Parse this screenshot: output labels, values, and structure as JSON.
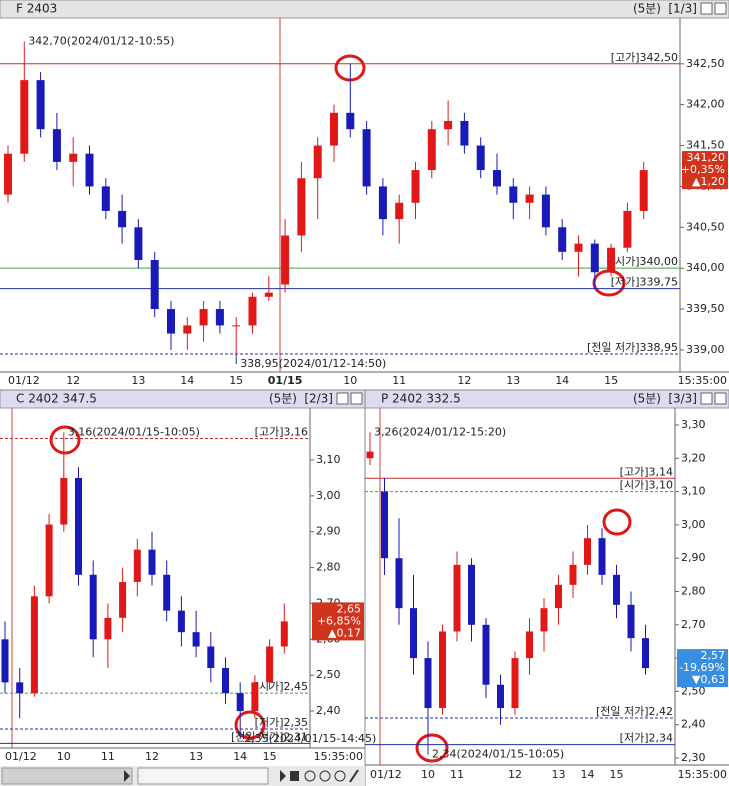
{
  "chart_data": [
    {
      "type": "candlestick",
      "title": "F 2403",
      "timeframe": "(5분)",
      "page": "[1/3]",
      "end_time": "15:35:00",
      "ylim": [
        338.73,
        343.06
      ],
      "yticks": [
        {
          "value": 339,
          "label": "339,00"
        },
        {
          "value": 339.5,
          "label": "339,50"
        },
        {
          "value": 340,
          "label": "340,00"
        },
        {
          "value": 340.5,
          "label": "340,50"
        },
        {
          "value": 341,
          "label": "341,00"
        },
        {
          "value": 341.5,
          "label": "341,50"
        },
        {
          "value": 342,
          "label": "342,00"
        },
        {
          "value": 342.5,
          "label": "342,50"
        }
      ],
      "open": [
        340.9,
        341.4,
        342.3,
        341.7,
        341.3,
        341.4,
        341.0,
        340.7,
        340.5,
        340.1,
        339.5,
        339.2,
        339.3,
        339.5,
        339.3,
        339.3,
        339.65,
        339.8,
        340.4,
        341.1,
        341.5,
        341.9,
        341.7,
        341.0,
        340.6,
        340.8,
        341.2,
        341.7,
        341.8,
        341.5,
        341.2,
        341.0,
        340.8,
        340.9,
        340.5,
        340.2,
        340.3,
        339.95,
        340.25,
        340.7
      ],
      "high": [
        341.5,
        342.7,
        342.4,
        341.9,
        341.6,
        341.5,
        341.1,
        340.9,
        340.6,
        340.2,
        339.6,
        339.4,
        339.6,
        339.6,
        339.4,
        339.7,
        339.9,
        340.6,
        341.3,
        341.6,
        342.0,
        342.5,
        341.8,
        341.1,
        340.9,
        341.3,
        341.8,
        342.05,
        341.9,
        341.6,
        341.4,
        341.1,
        341.0,
        341.0,
        340.6,
        340.4,
        340.35,
        340.3,
        340.8,
        341.3
      ],
      "low": [
        340.8,
        341.3,
        341.6,
        341.2,
        341.0,
        340.9,
        340.6,
        340.3,
        340.0,
        339.4,
        339.0,
        339.0,
        339.1,
        339.2,
        338.95,
        339.2,
        339.6,
        339.7,
        340.2,
        340.6,
        341.3,
        341.6,
        340.9,
        340.4,
        340.3,
        340.6,
        341.1,
        341.5,
        341.4,
        341.1,
        340.9,
        340.6,
        340.6,
        340.4,
        340.1,
        339.9,
        339.75,
        339.9,
        340.2,
        340.6
      ],
      "close": [
        341.4,
        342.3,
        341.7,
        341.3,
        341.4,
        341.0,
        340.7,
        340.5,
        340.1,
        339.5,
        339.2,
        339.3,
        339.5,
        339.3,
        339.3,
        339.65,
        339.7,
        340.4,
        341.1,
        341.5,
        341.9,
        341.7,
        341.0,
        340.6,
        340.8,
        341.2,
        341.7,
        341.8,
        341.5,
        341.2,
        341.0,
        340.8,
        340.9,
        340.5,
        340.2,
        340.3,
        339.95,
        340.25,
        340.7,
        341.2
      ],
      "time_labels": [
        {
          "label": "01/12",
          "index": 0
        },
        {
          "label": "12",
          "index": 4
        },
        {
          "label": "13",
          "index": 8
        },
        {
          "label": "14",
          "index": 11
        },
        {
          "label": "15",
          "index": 14
        },
        {
          "label": "01/15",
          "index": 17
        },
        {
          "label": "10",
          "index": 21
        },
        {
          "label": "11",
          "index": 24
        },
        {
          "label": "12",
          "index": 28
        },
        {
          "label": "13",
          "index": 31
        },
        {
          "label": "14",
          "index": 34
        },
        {
          "label": "15",
          "index": 37
        }
      ],
      "levels": [
        {
          "label": "[고가]342,50",
          "value": 342.5,
          "color": "#c03030",
          "dashed": false
        },
        {
          "label": "[시가]340,00",
          "value": 340,
          "color": "#40a040",
          "dashed": false
        },
        {
          "label": "[저가]339,75",
          "value": 339.75,
          "color": "#2030a0",
          "dashed": false
        },
        {
          "label": "[전일 저가]338,95",
          "value": 338.95,
          "color": "#2030a0",
          "dashed": true
        }
      ],
      "annotations": [
        {
          "label": "342,70(2024/01/12-10:55)",
          "value": 342.7,
          "index": 1,
          "color": "#c03030"
        },
        {
          "label": "338,95(2024/01/12-14:50)",
          "value": 338.95,
          "index": 14,
          "color": "#2030a0"
        }
      ],
      "current": {
        "price": 341.2,
        "labels": [
          "341,20",
          "+0,35%",
          "▲1,20"
        ],
        "color": "#d0341c"
      }
    },
    {
      "type": "candlestick",
      "title": "C 2402 347.5",
      "timeframe": "(5분)",
      "page": "[2/3]",
      "end_time": "15:35:00",
      "ylim": [
        2.297,
        3.245
      ],
      "yticks": [
        {
          "value": 2.4,
          "label": "2,40"
        },
        {
          "value": 2.5,
          "label": "2,50"
        },
        {
          "value": 2.6,
          "label": "2,60"
        },
        {
          "value": 2.7,
          "label": "2,70"
        },
        {
          "value": 2.8,
          "label": "2,80"
        },
        {
          "value": 2.9,
          "label": "2,90"
        },
        {
          "value": 3,
          "label": "3,00"
        },
        {
          "value": 3.1,
          "label": "3,10"
        }
      ],
      "open": [
        2.6,
        2.48,
        2.45,
        2.72,
        2.92,
        3.05,
        2.78,
        2.6,
        2.66,
        2.76,
        2.85,
        2.78,
        2.68,
        2.62,
        2.58,
        2.52,
        2.45,
        2.4,
        2.48,
        2.58
      ],
      "high": [
        2.65,
        2.52,
        2.75,
        2.95,
        3.16,
        3.08,
        2.82,
        2.7,
        2.8,
        2.88,
        2.9,
        2.82,
        2.72,
        2.68,
        2.62,
        2.55,
        2.48,
        2.5,
        2.6,
        2.7
      ],
      "low": [
        2.45,
        2.38,
        2.44,
        2.7,
        2.9,
        2.75,
        2.55,
        2.52,
        2.62,
        2.72,
        2.75,
        2.65,
        2.58,
        2.55,
        2.48,
        2.42,
        2.35,
        2.38,
        2.46,
        2.56
      ],
      "close": [
        2.48,
        2.45,
        2.72,
        2.92,
        3.05,
        2.78,
        2.6,
        2.66,
        2.76,
        2.85,
        2.78,
        2.68,
        2.62,
        2.58,
        2.52,
        2.45,
        2.4,
        2.48,
        2.58,
        2.65
      ],
      "time_labels": [
        {
          "label": "01/12",
          "index": 0
        },
        {
          "label": "10",
          "index": 4
        },
        {
          "label": "11",
          "index": 7
        },
        {
          "label": "12",
          "index": 10
        },
        {
          "label": "13",
          "index": 13
        },
        {
          "label": "14",
          "index": 16
        },
        {
          "label": "15",
          "index": 18
        }
      ],
      "levels": [
        {
          "label": "[고가]3,16",
          "value": 3.16,
          "color": "#c03030",
          "dashed": true
        },
        {
          "label": "[시가]2,45",
          "value": 2.45,
          "color": "#40a040",
          "dashed": true
        },
        {
          "label": "[저가]2,35",
          "value": 2.35,
          "color": "#2030a0",
          "dashed": true
        },
        {
          "label": "[전일 저가]2,31",
          "value": 2.31,
          "color": "#2030a0",
          "dashed": false
        }
      ],
      "annotations": [
        {
          "label": "3,16(2024/01/15-10:05)",
          "value": 3.16,
          "index": 4,
          "color": "#c03030"
        },
        {
          "label": "2,35(2024/01/15-14:45)",
          "value": 2.35,
          "index": 16,
          "color": "#2030a0"
        }
      ],
      "current": {
        "price": 2.65,
        "labels": [
          "2,65",
          "+6,85%",
          "▲0,17"
        ],
        "color": "#d0341c"
      }
    },
    {
      "type": "candlestick",
      "title": "P 2402 332.5",
      "timeframe": "(5분)",
      "page": "[3/3]",
      "end_time": "15:35:00",
      "ylim": [
        2.279,
        3.351
      ],
      "yticks": [
        {
          "value": 2.3,
          "label": "2,30"
        },
        {
          "value": 2.4,
          "label": "2,40"
        },
        {
          "value": 2.5,
          "label": "2,50"
        },
        {
          "value": 2.6,
          "label": "2,60"
        },
        {
          "value": 2.7,
          "label": "2,70"
        },
        {
          "value": 2.8,
          "label": "2,80"
        },
        {
          "value": 2.9,
          "label": "2,90"
        },
        {
          "value": 3,
          "label": "3,00"
        },
        {
          "value": 3.1,
          "label": "3,10"
        },
        {
          "value": 3.2,
          "label": "3,20"
        },
        {
          "value": 3.3,
          "label": "3,30"
        }
      ],
      "open": [
        3.2,
        3.1,
        2.9,
        2.75,
        2.6,
        2.45,
        2.68,
        2.88,
        2.7,
        2.52,
        2.45,
        2.6,
        2.68,
        2.75,
        2.82,
        2.88,
        2.96,
        2.85,
        2.76,
        2.66
      ],
      "high": [
        3.26,
        3.14,
        3.02,
        2.85,
        2.65,
        2.7,
        2.92,
        2.9,
        2.72,
        2.55,
        2.62,
        2.72,
        2.78,
        2.85,
        2.92,
        3.0,
        2.99,
        2.88,
        2.8,
        2.7
      ],
      "low": [
        3.18,
        2.85,
        2.7,
        2.55,
        2.34,
        2.43,
        2.65,
        2.65,
        2.48,
        2.4,
        2.43,
        2.55,
        2.62,
        2.7,
        2.78,
        2.85,
        2.82,
        2.72,
        2.62,
        2.55
      ],
      "close": [
        3.22,
        2.9,
        2.75,
        2.6,
        2.45,
        2.68,
        2.88,
        2.7,
        2.52,
        2.45,
        2.6,
        2.68,
        2.75,
        2.82,
        2.88,
        2.96,
        2.85,
        2.76,
        2.66,
        2.57
      ],
      "time_labels": [
        {
          "label": "01/12",
          "index": 0
        },
        {
          "label": "10",
          "index": 4
        },
        {
          "label": "11",
          "index": 6
        },
        {
          "label": "12",
          "index": 10
        },
        {
          "label": "13",
          "index": 13
        },
        {
          "label": "14",
          "index": 15
        },
        {
          "label": "15",
          "index": 17
        }
      ],
      "levels": [
        {
          "label": "[고가]3,14",
          "value": 3.14,
          "color": "#c03030",
          "dashed": false
        },
        {
          "label": "[시가]3,10",
          "value": 3.1,
          "color": "#40a040",
          "dashed": true
        },
        {
          "label": "[전일 저가]2,42",
          "value": 2.42,
          "color": "#2030a0",
          "dashed": true
        },
        {
          "label": "[저가]2,34",
          "value": 2.34,
          "color": "#2030a0",
          "dashed": false
        }
      ],
      "annotations": [
        {
          "label": "3,26(2024/01/12-15:20)",
          "value": 3.26,
          "index": 0,
          "color": "#c03030"
        },
        {
          "label": "2,34(2024/01/15-10:05)",
          "value": 2.34,
          "index": 4,
          "color": "#2030a0"
        }
      ],
      "current": {
        "price": 2.57,
        "labels": [
          "2,57",
          "-19,69%",
          "▼0,63"
        ],
        "color": "#3a8ee0"
      }
    }
  ]
}
